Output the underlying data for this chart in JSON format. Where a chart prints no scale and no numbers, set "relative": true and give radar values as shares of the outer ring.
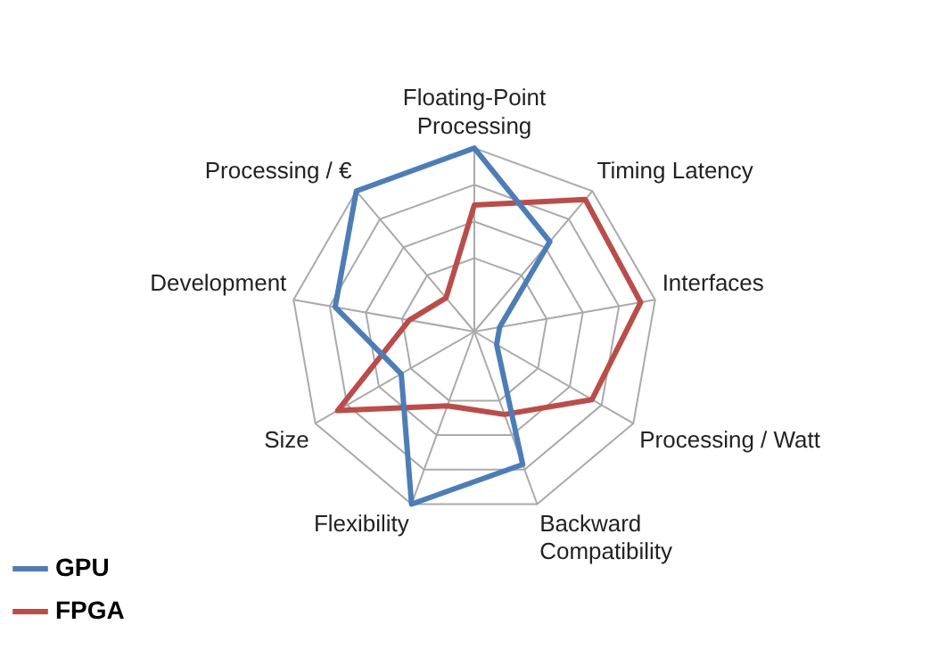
{
  "chart_data": {
    "type": "radar",
    "relative": true,
    "categories": [
      "Floating-Point Processing",
      "Timing Latency",
      "Interfaces",
      "Processing / Watt",
      "Backward Compatibility",
      "Flexibility",
      "Size",
      "Development",
      "Processing / €"
    ],
    "series": [
      {
        "name": "GPU",
        "color": "#4a7ebb",
        "values": [
          1.0,
          0.64,
          0.14,
          0.14,
          0.77,
          1.0,
          0.46,
          0.77,
          1.0
        ]
      },
      {
        "name": "FPGA",
        "color": "#be4b48",
        "values": [
          0.69,
          0.94,
          0.92,
          0.74,
          0.48,
          0.43,
          0.86,
          0.36,
          0.24
        ]
      }
    ],
    "legend": "bottom left",
    "marker": "none",
    "grid": true
  }
}
